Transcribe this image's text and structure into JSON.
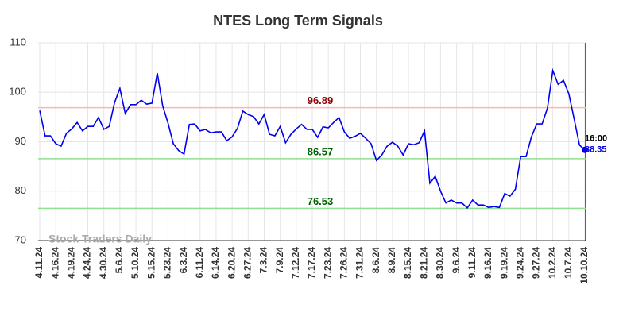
{
  "chart_data": {
    "type": "line",
    "title": "NTES Long Term Signals",
    "watermark": "Stock Traders Daily",
    "categories": [
      "4.11.24",
      null,
      null,
      "4.16.24",
      null,
      null,
      "4.19.24",
      null,
      null,
      "4.24.24",
      null,
      null,
      "4.30.24",
      null,
      null,
      "5.6.24",
      null,
      null,
      "5.10.24",
      null,
      null,
      "5.15.24",
      null,
      null,
      "5.23.24",
      null,
      null,
      "6.3.24",
      null,
      null,
      "6.11.24",
      null,
      null,
      "6.14.24",
      null,
      null,
      "6.20.24",
      null,
      null,
      "6.27.24",
      null,
      null,
      "7.3.24",
      null,
      null,
      "7.9.24",
      null,
      null,
      "7.12.24",
      null,
      null,
      "7.17.24",
      null,
      null,
      "7.23.24",
      null,
      null,
      "7.26.24",
      null,
      null,
      "7.31.24",
      null,
      null,
      "8.6.24",
      null,
      null,
      "8.9.24",
      null,
      null,
      "8.15.24",
      null,
      null,
      "8.21.24",
      null,
      null,
      "8.30.24",
      null,
      null,
      "9.6.24",
      null,
      null,
      "9.11.24",
      null,
      null,
      "9.16.24",
      null,
      null,
      "9.19.24",
      null,
      null,
      "9.24.24",
      null,
      null,
      "9.27.24",
      null,
      null,
      "10.2.24",
      null,
      null,
      "10.7.24",
      null,
      null,
      "10.10.24"
    ],
    "values": [
      96.3,
      91.2,
      91.2,
      89.6,
      89.1,
      91.7,
      92.6,
      93.9,
      92.2,
      93.1,
      93.1,
      94.9,
      92.5,
      93.1,
      97.9,
      100.8,
      95.7,
      97.5,
      97.5,
      98.4,
      97.6,
      97.8,
      103.9,
      97.3,
      93.8,
      89.6,
      88.2,
      87.5,
      93.5,
      93.6,
      92.2,
      92.5,
      91.8,
      92.0,
      92.0,
      90.2,
      91.0,
      92.7,
      96.2,
      95.5,
      95.1,
      93.6,
      95.5,
      91.5,
      91.2,
      93.1,
      89.8,
      91.5,
      92.6,
      93.5,
      92.5,
      92.5,
      90.9,
      93.0,
      92.8,
      93.9,
      94.9,
      92.0,
      90.7,
      91.1,
      91.7,
      90.7,
      89.6,
      86.2,
      87.3,
      89.1,
      89.9,
      89.1,
      87.3,
      89.6,
      89.4,
      89.8,
      92.2,
      81.6,
      83.0,
      80.0,
      77.6,
      78.2,
      77.6,
      77.6,
      76.6,
      78.2,
      77.2,
      77.2,
      76.7,
      76.9,
      76.7,
      79.5,
      79.0,
      80.4,
      87.0,
      87.0,
      91.0,
      93.6,
      93.6,
      96.8,
      104.4,
      101.6,
      102.4,
      99.7,
      94.6,
      89.3,
      88.35
    ],
    "color": "#0000ee",
    "last_time": "16:00",
    "hlines": [
      {
        "value": 96.89,
        "color": "#ffb3b3",
        "label_color": "#8b0000"
      },
      {
        "value": 86.57,
        "color": "#90e090",
        "label_color": "#006400"
      },
      {
        "value": 76.53,
        "color": "#90e090",
        "label_color": "#006400"
      }
    ],
    "ylim": [
      70,
      110
    ],
    "yticks": [
      70,
      80,
      90,
      100,
      110
    ],
    "grid": true
  }
}
